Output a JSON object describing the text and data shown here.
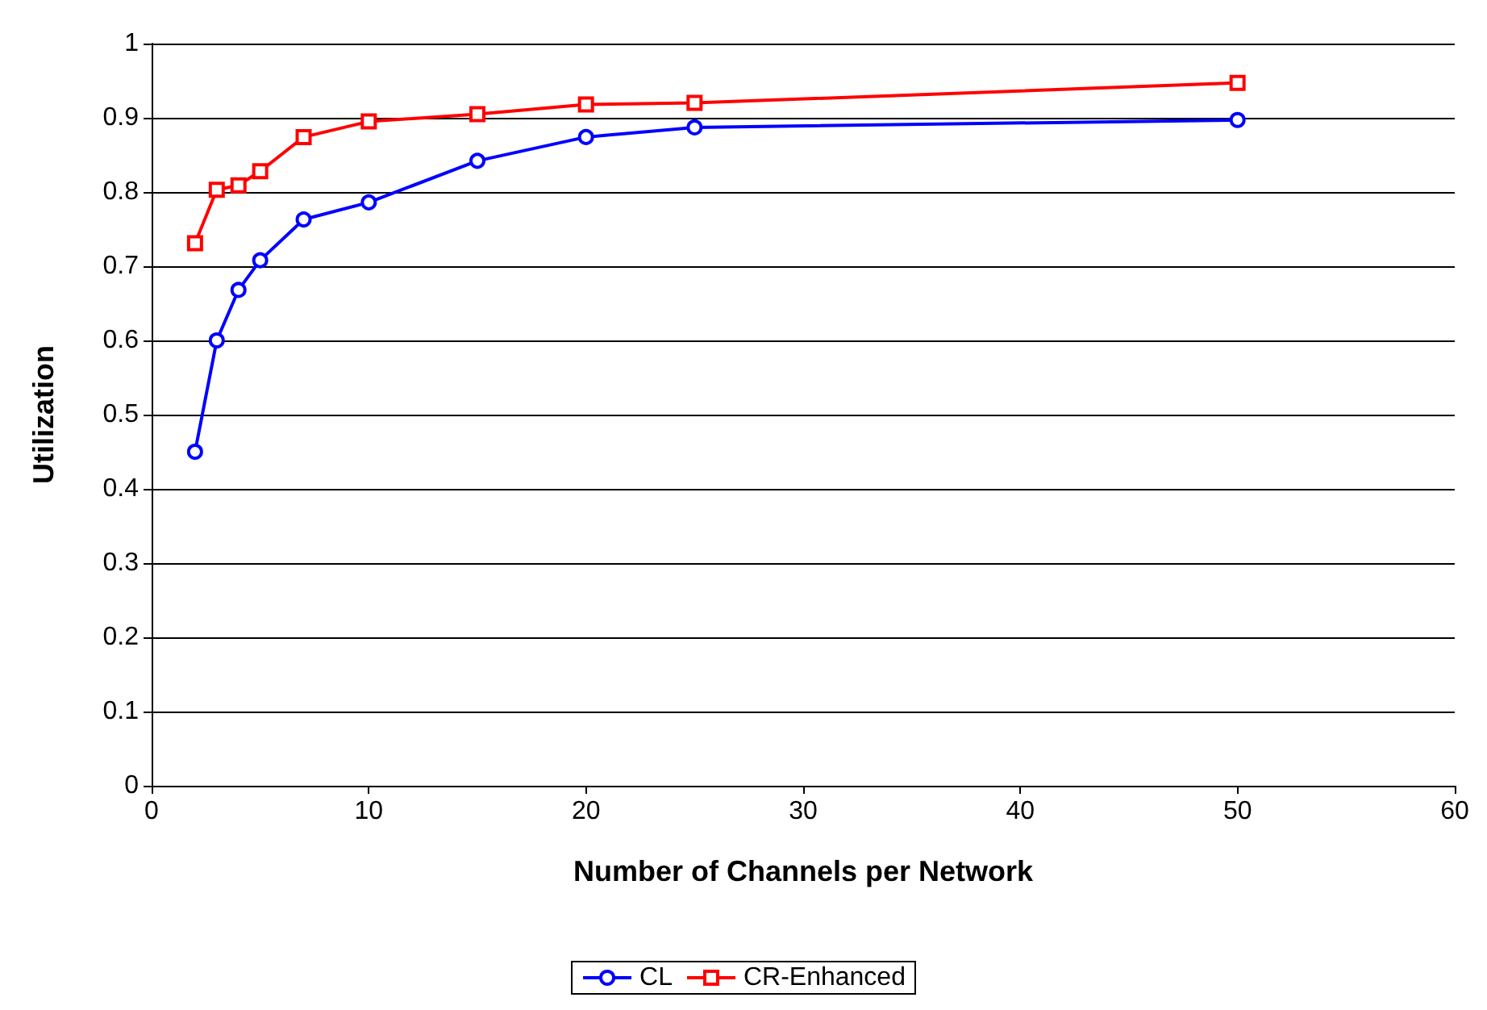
{
  "chart_data": {
    "type": "line",
    "xlabel": "Number of Channels per Network",
    "ylabel": "Utilization",
    "xlim": [
      0,
      60
    ],
    "xticks": [
      0,
      10,
      20,
      30,
      40,
      50,
      60
    ],
    "ylim": [
      0,
      1
    ],
    "yticks": [
      0,
      0.1,
      0.2,
      0.3,
      0.4,
      0.5,
      0.6,
      0.7,
      0.8,
      0.9,
      1
    ],
    "grid": "y",
    "legend": "bottom",
    "line_style": "solid",
    "x": [
      2,
      3,
      4,
      5,
      7,
      10,
      15,
      20,
      25,
      50
    ],
    "series": [
      {
        "name": "CL",
        "color": "#0000ff",
        "marker": "circle",
        "values": [
          0.45,
          0.6,
          0.668,
          0.708,
          0.763,
          0.786,
          0.842,
          0.874,
          0.887,
          0.897
        ]
      },
      {
        "name": "CR-Enhanced",
        "color": "#ff0000",
        "marker": "square",
        "values": [
          0.731,
          0.803,
          0.809,
          0.828,
          0.874,
          0.895,
          0.905,
          0.918,
          0.92,
          0.947
        ]
      }
    ]
  }
}
